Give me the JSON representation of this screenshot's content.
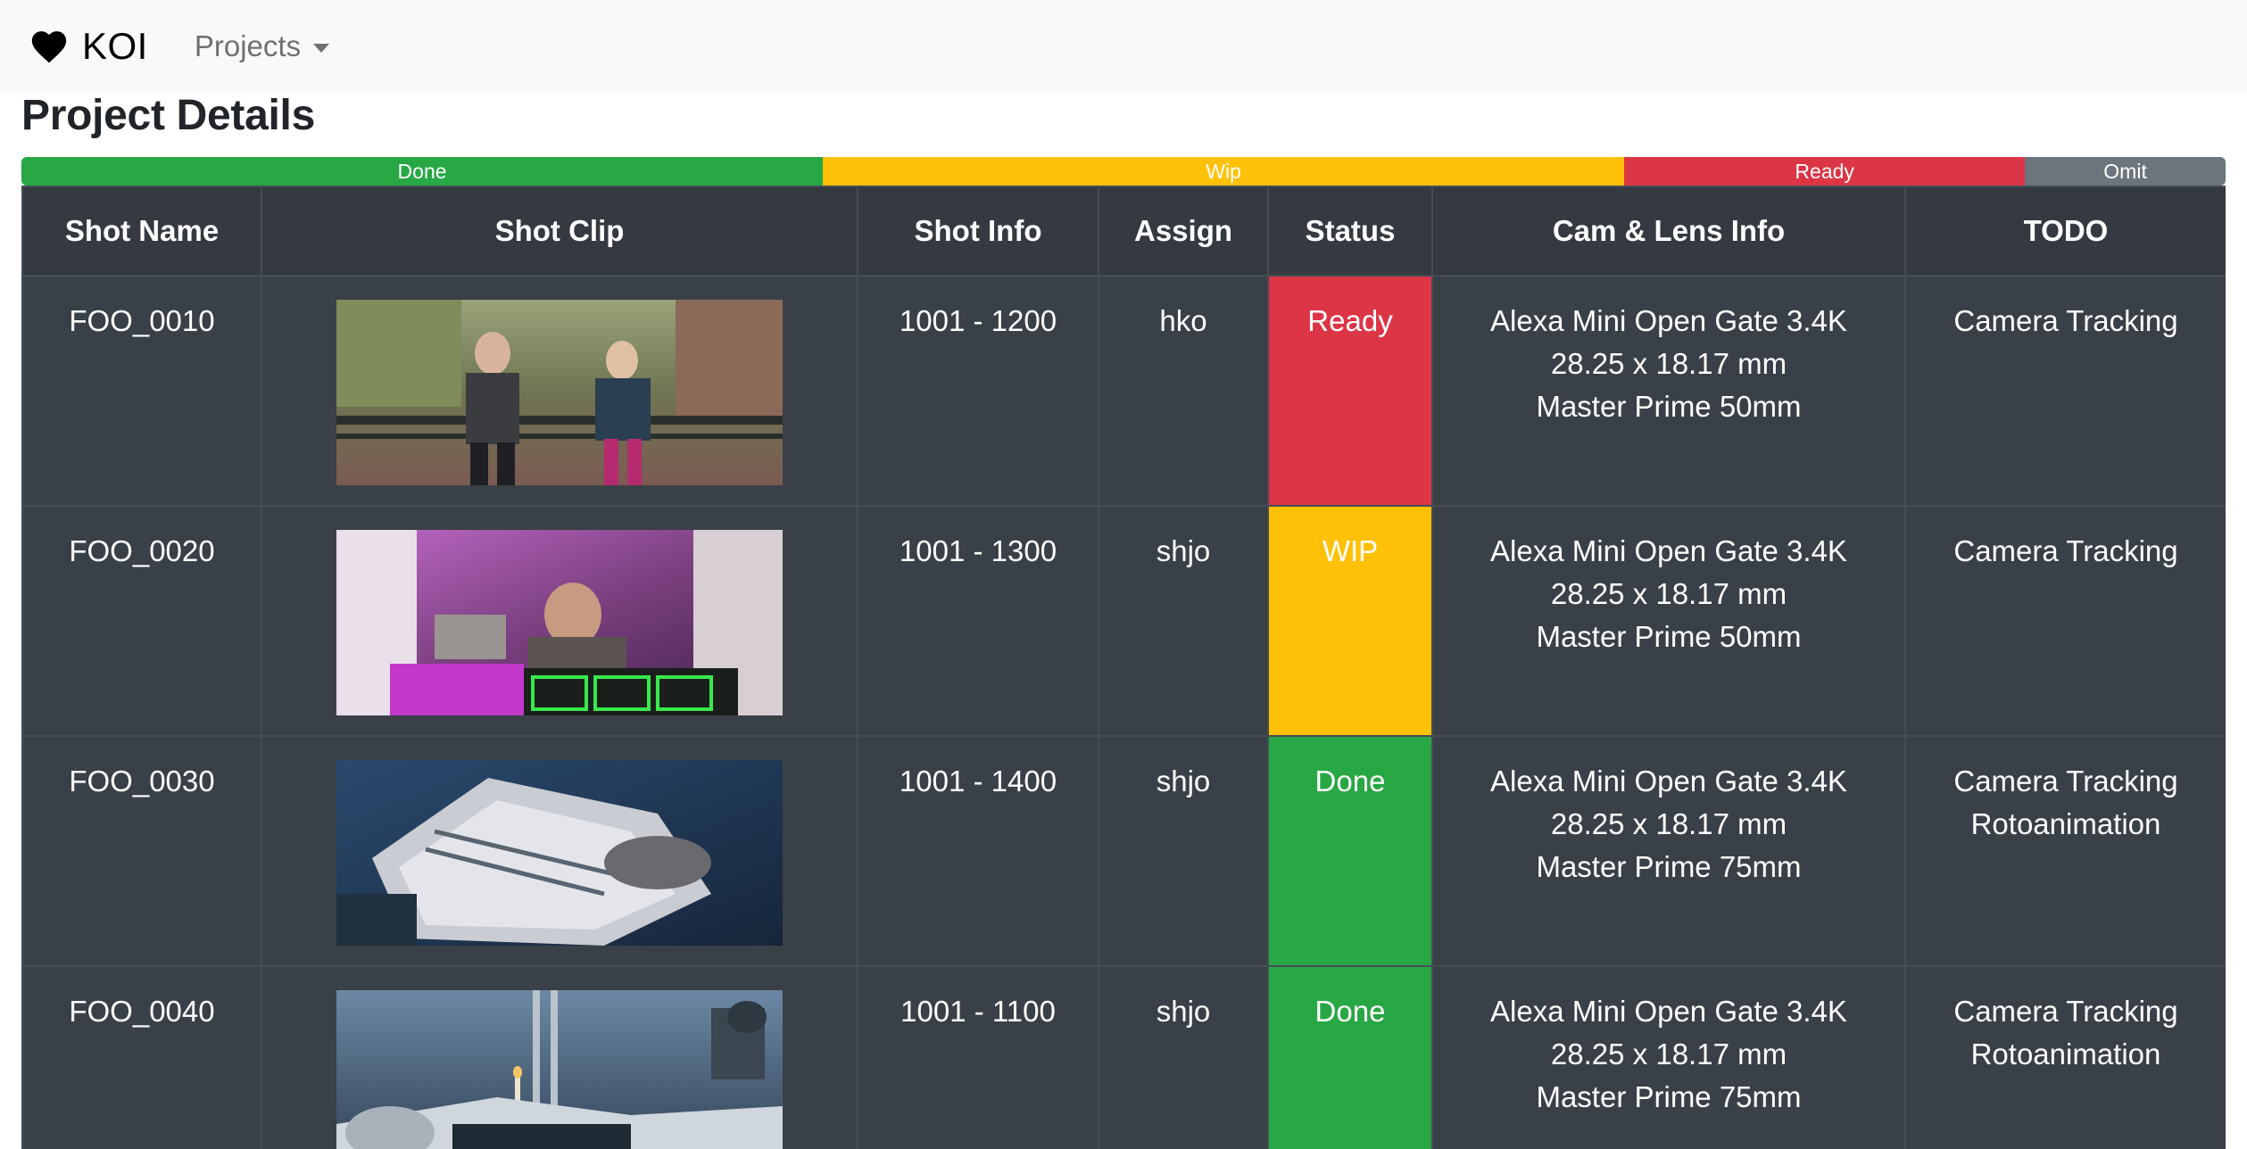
{
  "navbar": {
    "brand_label": "KOI",
    "brand_icon": "heart-icon",
    "projects_label": "Projects"
  },
  "page": {
    "title": "Project Details"
  },
  "progress": {
    "segments": [
      {
        "label": "Done",
        "fraction": 0.3636,
        "color": "#28a745"
      },
      {
        "label": "Wip",
        "fraction": 0.3636,
        "color": "#ffc107"
      },
      {
        "label": "Ready",
        "fraction": 0.1818,
        "color": "#dc3545"
      },
      {
        "label": "Omit",
        "fraction": 0.091,
        "color": "#6c757d"
      }
    ]
  },
  "table": {
    "headers": [
      "Shot Name",
      "Shot Clip",
      "Shot Info",
      "Assign",
      "Status",
      "Cam & Lens Info",
      "TODO"
    ],
    "rows": [
      {
        "shot_name": "FOO_0010",
        "shot_info": "1001 - 1200",
        "assign": "hko",
        "status": "Ready",
        "status_color": "#dc3545",
        "cam": "Alexa Mini Open Gate 3.4K",
        "sensor": "28.25 x 18.17 mm",
        "lens": "Master Prime 50mm",
        "todo": [
          "Camera Tracking"
        ]
      },
      {
        "shot_name": "FOO_0020",
        "shot_info": "1001 - 1300",
        "assign": "shjo",
        "status": "WIP",
        "status_color": "#ffc107",
        "cam": "Alexa Mini Open Gate 3.4K",
        "sensor": "28.25 x 18.17 mm",
        "lens": "Master Prime 50mm",
        "todo": [
          "Camera Tracking"
        ]
      },
      {
        "shot_name": "FOO_0030",
        "shot_info": "1001 - 1400",
        "assign": "shjo",
        "status": "Done",
        "status_color": "#28a745",
        "cam": "Alexa Mini Open Gate 3.4K",
        "sensor": "28.25 x 18.17 mm",
        "lens": "Master Prime 75mm",
        "todo": [
          "Camera Tracking",
          "Rotoanimation"
        ]
      },
      {
        "shot_name": "FOO_0040",
        "shot_info": "1001 - 1100",
        "assign": "shjo",
        "status": "Done",
        "status_color": "#28a745",
        "cam": "Alexa Mini Open Gate 3.4K",
        "sensor": "28.25 x 18.17 mm",
        "lens": "Master Prime 75mm",
        "todo": [
          "Camera Tracking",
          "Rotoanimation"
        ]
      }
    ]
  }
}
